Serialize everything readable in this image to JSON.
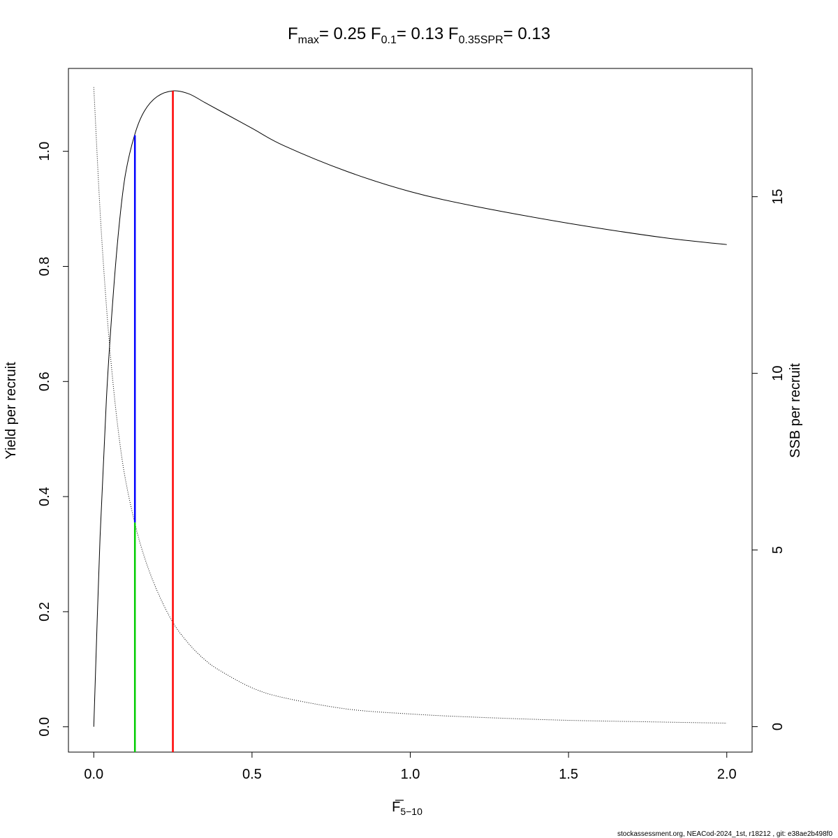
{
  "chart_data": {
    "type": "line",
    "title": {
      "fmax": {
        "base": "F",
        "sub": "max",
        "value": "= 0.25"
      },
      "f01": {
        "base": "F",
        "sub": "0.1",
        "value": "= 0.13"
      },
      "f035spr": {
        "base": "F",
        "sub": "0.35SPR",
        "value": "= 0.13"
      }
    },
    "xlabel": {
      "base": "F",
      "sub": "5−10"
    },
    "ylabel_left": "Yield per recruit",
    "ylabel_right": "SSB per recruit",
    "xlim": [
      -0.08,
      2.08
    ],
    "ylim_left": [
      -0.044,
      1.144
    ],
    "ylim_right": [
      -0.72,
      18.63
    ],
    "x_ticks": [
      "0.0",
      "0.5",
      "1.0",
      "1.5",
      "2.0"
    ],
    "y_left_ticks": [
      "0.0",
      "0.2",
      "0.4",
      "0.6",
      "0.8",
      "1.0"
    ],
    "y_right_ticks": [
      "0",
      "5",
      "10",
      "15"
    ],
    "series": [
      {
        "axis": "left",
        "style": "solid",
        "color": "#000000",
        "x": [
          0,
          0.02,
          0.04,
          0.06,
          0.08,
          0.1,
          0.13,
          0.16,
          0.2,
          0.25,
          0.3,
          0.35,
          0.4,
          0.5,
          0.6,
          0.8,
          1.0,
          1.2,
          1.5,
          1.8,
          2.0
        ],
        "y": [
          0.0,
          0.33,
          0.57,
          0.74,
          0.87,
          0.96,
          1.03,
          1.07,
          1.095,
          1.105,
          1.1,
          1.085,
          1.07,
          1.04,
          1.01,
          0.965,
          0.93,
          0.905,
          0.875,
          0.85,
          0.838
        ]
      },
      {
        "axis": "right",
        "style": "dotted",
        "color": "#000000",
        "x": [
          0,
          0.02,
          0.04,
          0.06,
          0.08,
          0.1,
          0.13,
          0.16,
          0.2,
          0.25,
          0.3,
          0.35,
          0.4,
          0.5,
          0.6,
          0.8,
          1.0,
          1.2,
          1.5,
          1.8,
          2.0
        ],
        "y": [
          18.1,
          14.6,
          11.9,
          9.8,
          8.2,
          7.0,
          5.75,
          4.8,
          3.85,
          2.95,
          2.35,
          1.9,
          1.58,
          1.1,
          0.82,
          0.5,
          0.36,
          0.27,
          0.18,
          0.13,
          0.1
        ]
      }
    ],
    "reference_lines": [
      {
        "name": "Fmax",
        "color": "#ff0000",
        "x": 0.25,
        "y_from": -0.044,
        "y_to": 1.105
      },
      {
        "name": "F0.1",
        "color": "#0000ff",
        "x": 0.13,
        "y_from": 0.355,
        "y_to": 1.028
      },
      {
        "name": "F0.35SPR",
        "color": "#00cc00",
        "x": 0.13,
        "y_from": -0.044,
        "y_to": 0.355
      }
    ],
    "grid": false,
    "legend": "none"
  },
  "footer": "stockassessment.org, NEACod-2024_1st, r18212 , git: e38ae2b498f0"
}
